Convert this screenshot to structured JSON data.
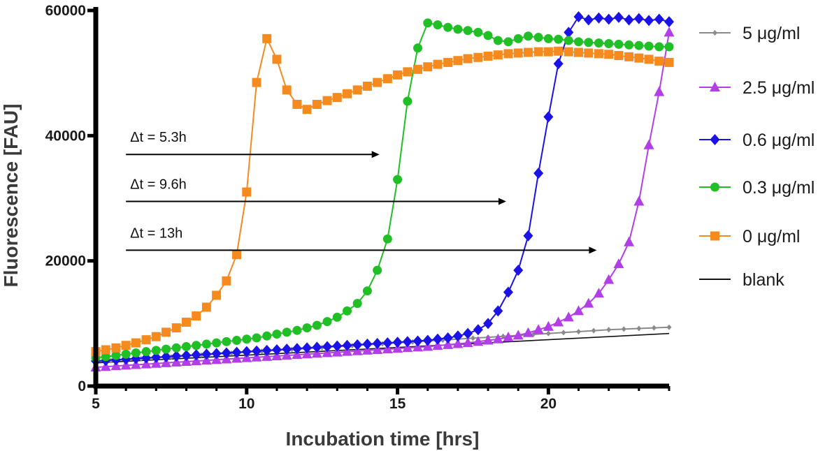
{
  "chart_data": {
    "type": "line",
    "title": "",
    "xlabel": "Incubation time [hrs]",
    "ylabel": "Fluorescence [FAU]",
    "xlim": [
      5,
      24
    ],
    "ylim": [
      0,
      60000
    ],
    "xticks": [
      5,
      10,
      15,
      20
    ],
    "yticks": [
      0,
      20000,
      40000,
      60000
    ],
    "grid": false,
    "legend_position": "right",
    "series": [
      {
        "name": "5 μg/ml",
        "color": "#8a8a8a",
        "marker": "diamond-small",
        "x": [
          5,
          5.5,
          6,
          6.5,
          7,
          7.5,
          8,
          8.5,
          9,
          9.5,
          10,
          10.5,
          11,
          11.5,
          12,
          12.5,
          13,
          13.5,
          14,
          14.5,
          15,
          15.5,
          16,
          16.5,
          17,
          17.5,
          18,
          18.5,
          19,
          19.5,
          20,
          20.5,
          21,
          21.5,
          22,
          22.5,
          23,
          23.5,
          24
        ],
        "y": [
          3900,
          4050,
          4200,
          4350,
          4500,
          4650,
          4800,
          4950,
          5100,
          5250,
          5400,
          5550,
          5700,
          5850,
          6000,
          6150,
          6300,
          6450,
          6600,
          6750,
          6900,
          7050,
          7200,
          7350,
          7500,
          7650,
          7800,
          7950,
          8100,
          8250,
          8400,
          8550,
          8700,
          8850,
          9000,
          9100,
          9200,
          9300,
          9400
        ]
      },
      {
        "name": "2.5 μg/ml",
        "color": "#b23ee8",
        "marker": "triangle",
        "x": [
          5,
          5.33,
          5.67,
          6,
          6.33,
          6.67,
          7,
          7.33,
          7.67,
          8,
          8.33,
          8.67,
          9,
          9.33,
          9.67,
          10,
          10.33,
          10.67,
          11,
          11.33,
          11.67,
          12,
          12.33,
          12.67,
          13,
          13.33,
          13.67,
          14,
          14.33,
          14.67,
          15,
          15.33,
          15.67,
          16,
          16.33,
          16.67,
          17,
          17.33,
          17.67,
          18,
          18.33,
          18.67,
          19,
          19.33,
          19.67,
          20,
          20.33,
          20.67,
          21,
          21.33,
          21.67,
          22,
          22.33,
          22.67,
          23,
          23.33,
          23.67,
          24
        ],
        "y": [
          3000,
          3100,
          3200,
          3300,
          3400,
          3500,
          3600,
          3700,
          3800,
          3900,
          4000,
          4100,
          4200,
          4300,
          4400,
          4500,
          4600,
          4700,
          4800,
          4900,
          5000,
          5100,
          5200,
          5300,
          5400,
          5500,
          5600,
          5700,
          5800,
          5900,
          6000,
          6100,
          6200,
          6300,
          6450,
          6600,
          6750,
          6900,
          7100,
          7300,
          7500,
          7800,
          8100,
          8500,
          9000,
          9500,
          10200,
          11000,
          12000,
          13200,
          14800,
          17000,
          19500,
          23000,
          29500,
          38500,
          47000,
          56500
        ]
      },
      {
        "name": "0.6 μg/ml",
        "color": "#1a12e6",
        "marker": "diamond",
        "x": [
          5,
          5.33,
          5.67,
          6,
          6.33,
          6.67,
          7,
          7.33,
          7.67,
          8,
          8.33,
          8.67,
          9,
          9.33,
          9.67,
          10,
          10.33,
          10.67,
          11,
          11.33,
          11.67,
          12,
          12.33,
          12.67,
          13,
          13.33,
          13.67,
          14,
          14.33,
          14.67,
          15,
          15.33,
          15.67,
          16,
          16.33,
          16.67,
          17,
          17.33,
          17.67,
          18,
          18.33,
          18.67,
          19,
          19.33,
          19.67,
          20,
          20.33,
          20.67,
          21,
          21.33,
          21.67,
          22,
          22.33,
          22.67,
          23,
          23.33,
          23.67,
          24
        ],
        "y": [
          4000,
          4100,
          4200,
          4300,
          4400,
          4500,
          4600,
          4700,
          4800,
          4900,
          5000,
          5100,
          5200,
          5300,
          5400,
          5500,
          5600,
          5700,
          5800,
          5900,
          6000,
          6100,
          6200,
          6300,
          6400,
          6500,
          6600,
          6700,
          6800,
          6900,
          7000,
          7100,
          7200,
          7300,
          7500,
          7700,
          8000,
          8400,
          9000,
          10000,
          12000,
          15000,
          18500,
          24000,
          34000,
          43000,
          51500,
          56500,
          59000,
          58500,
          58800,
          58600,
          58900,
          58500,
          58700,
          58400,
          58600,
          58200
        ]
      },
      {
        "name": "0.3 μg/ml",
        "color": "#1fbf25",
        "marker": "circle",
        "x": [
          5,
          5.33,
          5.67,
          6,
          6.33,
          6.67,
          7,
          7.33,
          7.67,
          8,
          8.33,
          8.67,
          9,
          9.33,
          9.67,
          10,
          10.33,
          10.67,
          11,
          11.33,
          11.67,
          12,
          12.33,
          12.67,
          13,
          13.33,
          13.67,
          14,
          14.33,
          14.67,
          15,
          15.33,
          15.67,
          16,
          16.33,
          16.67,
          17,
          17.33,
          17.67,
          18,
          18.33,
          18.67,
          19,
          19.33,
          19.67,
          20,
          20.33,
          20.67,
          21,
          21.33,
          21.67,
          22,
          22.33,
          22.67,
          23,
          23.33,
          23.67,
          24
        ],
        "y": [
          4500,
          4700,
          4900,
          5100,
          5300,
          5500,
          5700,
          5900,
          6100,
          6300,
          6500,
          6700,
          6900,
          7100,
          7300,
          7500,
          7700,
          8000,
          8300,
          8600,
          8900,
          9300,
          9700,
          10300,
          11000,
          12000,
          13200,
          15200,
          18500,
          23500,
          33000,
          45500,
          54000,
          58000,
          57700,
          57300,
          57000,
          56800,
          56500,
          56000,
          55200,
          55000,
          55500,
          55900,
          55700,
          55500,
          55400,
          55200,
          55000,
          54900,
          54800,
          54700,
          54600,
          54500,
          54400,
          54300,
          54200,
          54200
        ]
      },
      {
        "name": "0 μg/ml",
        "color": "#f58a1f",
        "marker": "square",
        "x": [
          5,
          5.33,
          5.67,
          6,
          6.33,
          6.67,
          7,
          7.33,
          7.67,
          8,
          8.33,
          8.67,
          9,
          9.33,
          9.67,
          10,
          10.33,
          10.67,
          11,
          11.33,
          11.67,
          12,
          12.33,
          12.67,
          13,
          13.33,
          13.67,
          14,
          14.33,
          14.67,
          15,
          15.33,
          15.67,
          16,
          16.33,
          16.67,
          17,
          17.33,
          17.67,
          18,
          18.33,
          18.67,
          19,
          19.33,
          19.67,
          20,
          20.33,
          20.67,
          21,
          21.33,
          21.67,
          22,
          22.33,
          22.67,
          23,
          23.33,
          23.67,
          24
        ],
        "y": [
          5500,
          5800,
          6100,
          6500,
          6900,
          7400,
          7900,
          8600,
          9300,
          10200,
          11200,
          12600,
          14500,
          16800,
          21000,
          31000,
          48500,
          55500,
          52200,
          47300,
          45000,
          44200,
          45000,
          45600,
          46100,
          46700,
          47300,
          47900,
          48500,
          49100,
          49700,
          50200,
          50600,
          51000,
          51400,
          51700,
          52000,
          52300,
          52500,
          52700,
          52900,
          53100,
          53200,
          53300,
          53400,
          53400,
          53500,
          53400,
          53300,
          53200,
          53100,
          53000,
          52800,
          52600,
          52400,
          52200,
          51900,
          51700
        ]
      },
      {
        "name": "blank",
        "color": "#111111",
        "marker": "none",
        "x": [
          5,
          24
        ],
        "y": [
          3700,
          8400
        ]
      }
    ],
    "annotations": [
      {
        "text": "Δt = 5.3h",
        "x_start": 6,
        "x_end": 14.4,
        "y": 37000
      },
      {
        "text": "Δt = 9.6h",
        "x_start": 6,
        "x_end": 18.6,
        "y": 29500
      },
      {
        "text": "Δt = 13h",
        "x_start": 6,
        "x_end": 21.6,
        "y": 21700
      }
    ]
  }
}
